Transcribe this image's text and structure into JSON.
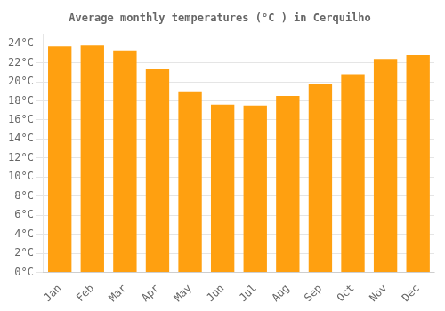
{
  "chart_data": {
    "type": "bar",
    "title": "Average monthly temperatures (°C ) in Cerquilho",
    "categories": [
      "Jan",
      "Feb",
      "Mar",
      "Apr",
      "May",
      "Jun",
      "Jul",
      "Aug",
      "Sep",
      "Oct",
      "Nov",
      "Dec"
    ],
    "values": [
      23.7,
      23.8,
      23.3,
      21.3,
      19.0,
      17.6,
      17.5,
      18.5,
      19.8,
      20.8,
      22.4,
      22.8
    ],
    "color": "#FFA010",
    "ylim": [
      0,
      25
    ],
    "yticks": [
      {
        "value": 0,
        "label": "0°C"
      },
      {
        "value": 2,
        "label": "2°C"
      },
      {
        "value": 4,
        "label": "4°C"
      },
      {
        "value": 6,
        "label": "6°C"
      },
      {
        "value": 8,
        "label": "8°C"
      },
      {
        "value": 10,
        "label": "10°C"
      },
      {
        "value": 12,
        "label": "12°C"
      },
      {
        "value": 14,
        "label": "14°C"
      },
      {
        "value": 16,
        "label": "16°C"
      },
      {
        "value": 18,
        "label": "18°C"
      },
      {
        "value": 20,
        "label": "20°C"
      },
      {
        "value": 22,
        "label": "22°C"
      },
      {
        "value": 24,
        "label": "24°C"
      }
    ],
    "grid": true
  }
}
